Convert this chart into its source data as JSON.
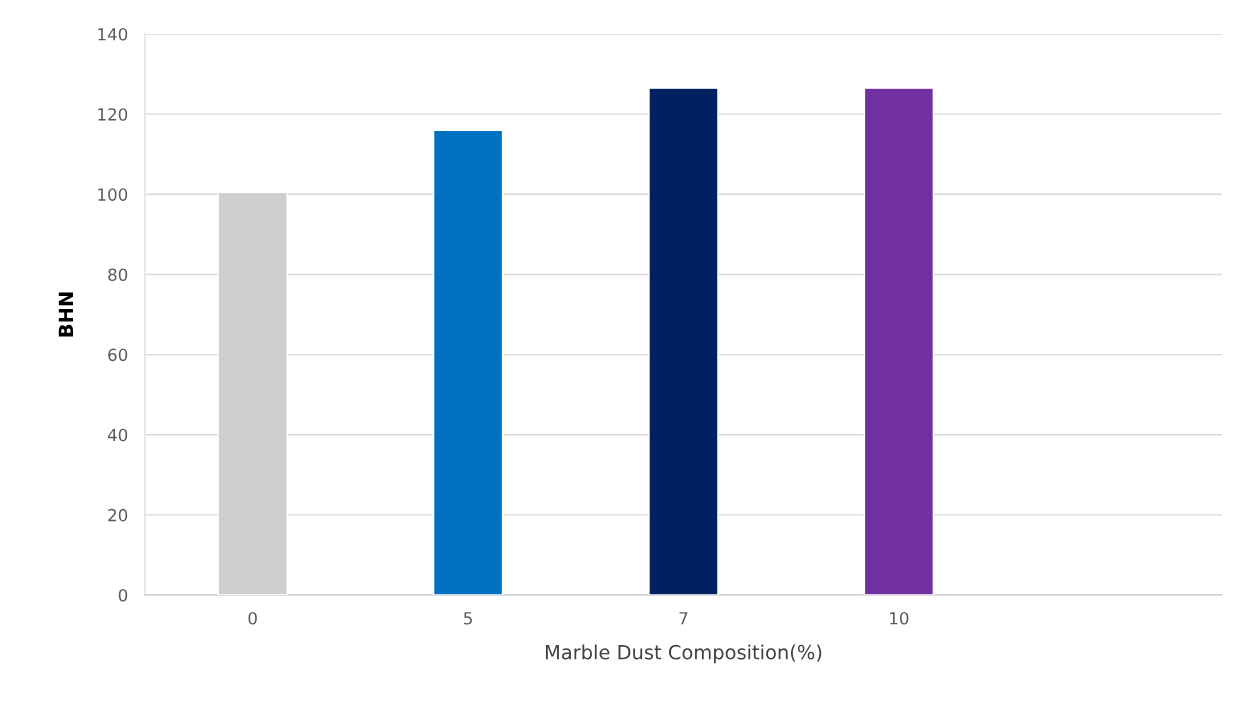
{
  "chart_data": {
    "type": "bar",
    "xlabel": "Marble Dust Composition(%)",
    "ylabel": "BHN",
    "categories": [
      "0",
      "5",
      "7",
      "10",
      null
    ],
    "values": [
      100.5,
      116,
      126.5,
      126.5,
      null
    ],
    "colors": [
      "#d0cece",
      "#0070c0",
      "#002060",
      "#7030a0",
      "#7030a0"
    ],
    "ylim": [
      0,
      140
    ],
    "yticks": [
      0,
      20,
      40,
      60,
      80,
      100,
      120,
      140
    ],
    "grid": "y"
  }
}
